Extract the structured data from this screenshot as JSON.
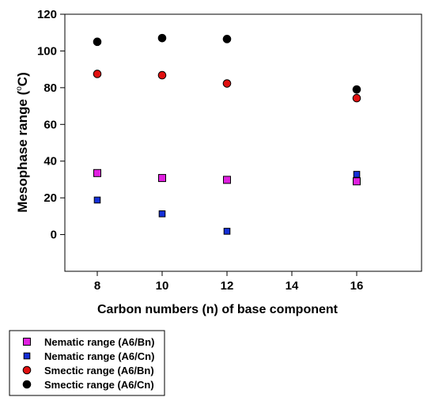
{
  "chart_data": {
    "type": "scatter",
    "xlabel": "Carbon numbers (n) of base component",
    "ylabel": "Mesophase range (°C)",
    "ylabel_unit_pre": "Mesophase range (",
    "ylabel_unit_sup": "o",
    "ylabel_unit_post": "C)",
    "xlim": [
      7,
      18
    ],
    "ylim": [
      -20,
      120
    ],
    "x_ticks": [
      8,
      10,
      12,
      14,
      16
    ],
    "y_ticks": [
      0,
      20,
      40,
      60,
      80,
      100,
      120
    ],
    "grid": false,
    "legend_placement": "bottom-left outside",
    "series": [
      {
        "name": "Nematic range (A6/Bn)",
        "marker": "square",
        "color": "#e020e0",
        "x": [
          8,
          10,
          12,
          16
        ],
        "y": [
          33.5,
          30.8,
          29.8,
          29.0
        ]
      },
      {
        "name": " Nematic range (A6/Cn)",
        "marker": "square-small",
        "color": "#1530d8",
        "x": [
          8,
          10,
          12,
          16
        ],
        "y": [
          18.8,
          11.3,
          1.8,
          32.8
        ]
      },
      {
        "name": "Smectic range (A6/Bn)",
        "marker": "circle",
        "color": "#e01010",
        "x": [
          8,
          10,
          12,
          16
        ],
        "y": [
          87.5,
          86.8,
          82.3,
          74.3
        ]
      },
      {
        "name": "Smectic range (A6/Cn)",
        "marker": "circle",
        "color": "#000000",
        "x": [
          8,
          10,
          12,
          16
        ],
        "y": [
          105.0,
          107.0,
          106.5,
          79.0
        ]
      }
    ]
  }
}
